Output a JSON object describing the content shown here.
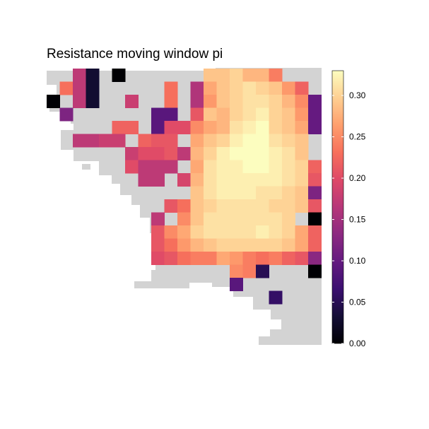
{
  "chart_data": {
    "type": "heatmap",
    "title": "Resistance moving window pi",
    "xlabel": "",
    "ylabel": "",
    "colormap": "magma",
    "na_color": "#d3d3d3",
    "legend": {
      "placement": "right",
      "range": [
        0,
        0.33
      ],
      "ticks": [
        0.0,
        0.05,
        0.1,
        0.15,
        0.2,
        0.25,
        0.3
      ],
      "tick_labels": [
        "0.00",
        "0.05",
        "0.10",
        "0.15",
        "0.20",
        "0.25",
        "0.30"
      ]
    },
    "grid_size": [
      21,
      21
    ],
    "cells": [
      [
        2,
        0,
        0.17
      ],
      [
        3,
        0,
        0.03
      ],
      [
        5,
        0,
        0.0
      ],
      [
        12,
        0,
        0.29
      ],
      [
        13,
        0,
        0.29
      ],
      [
        14,
        0,
        0.3
      ],
      [
        15,
        0,
        0.28
      ],
      [
        16,
        0,
        0.28
      ],
      [
        17,
        0,
        0.24
      ],
      [
        1,
        1,
        0.23
      ],
      [
        2,
        1,
        0.17
      ],
      [
        3,
        1,
        0.03
      ],
      [
        9,
        1,
        0.23
      ],
      [
        11,
        1,
        0.16
      ],
      [
        12,
        1,
        0.27
      ],
      [
        13,
        1,
        0.29
      ],
      [
        14,
        1,
        0.3
      ],
      [
        15,
        1,
        0.31
      ],
      [
        16,
        1,
        0.3
      ],
      [
        17,
        1,
        0.29
      ],
      [
        18,
        1,
        0.26
      ],
      [
        19,
        1,
        0.22
      ],
      [
        0,
        2,
        0.0
      ],
      [
        2,
        2,
        0.17
      ],
      [
        3,
        2,
        0.03
      ],
      [
        6,
        2,
        0.18
      ],
      [
        9,
        2,
        0.23
      ],
      [
        11,
        2,
        0.16
      ],
      [
        12,
        2,
        0.26
      ],
      [
        13,
        2,
        0.29
      ],
      [
        14,
        2,
        0.3
      ],
      [
        15,
        2,
        0.31
      ],
      [
        16,
        2,
        0.31
      ],
      [
        17,
        2,
        0.3
      ],
      [
        18,
        2,
        0.28
      ],
      [
        19,
        2,
        0.25
      ],
      [
        20,
        2,
        0.1
      ],
      [
        1,
        3,
        0.12
      ],
      [
        8,
        3,
        0.09
      ],
      [
        9,
        3,
        0.09
      ],
      [
        11,
        3,
        0.21
      ],
      [
        12,
        3,
        0.29
      ],
      [
        13,
        3,
        0.28
      ],
      [
        14,
        3,
        0.3
      ],
      [
        15,
        3,
        0.31
      ],
      [
        16,
        3,
        0.32
      ],
      [
        17,
        3,
        0.3
      ],
      [
        18,
        3,
        0.29
      ],
      [
        19,
        3,
        0.26
      ],
      [
        20,
        3,
        0.1
      ],
      [
        5,
        4,
        0.22
      ],
      [
        6,
        4,
        0.22
      ],
      [
        8,
        4,
        0.09
      ],
      [
        9,
        4,
        0.2
      ],
      [
        10,
        4,
        0.2
      ],
      [
        11,
        4,
        0.25
      ],
      [
        12,
        4,
        0.27
      ],
      [
        13,
        4,
        0.28
      ],
      [
        14,
        4,
        0.31
      ],
      [
        15,
        4,
        0.32
      ],
      [
        16,
        4,
        0.33
      ],
      [
        17,
        4,
        0.3
      ],
      [
        18,
        4,
        0.29
      ],
      [
        19,
        4,
        0.27
      ],
      [
        20,
        4,
        0.1
      ],
      [
        2,
        5,
        0.17
      ],
      [
        3,
        5,
        0.17
      ],
      [
        4,
        5,
        0.18
      ],
      [
        5,
        5,
        0.18
      ],
      [
        7,
        5,
        0.22
      ],
      [
        8,
        5,
        0.21
      ],
      [
        9,
        5,
        0.21
      ],
      [
        11,
        5,
        0.27
      ],
      [
        12,
        5,
        0.29
      ],
      [
        13,
        5,
        0.3
      ],
      [
        14,
        5,
        0.32
      ],
      [
        15,
        5,
        0.33
      ],
      [
        16,
        5,
        0.33
      ],
      [
        17,
        5,
        0.31
      ],
      [
        18,
        5,
        0.3
      ],
      [
        19,
        5,
        0.29
      ],
      [
        6,
        6,
        0.18
      ],
      [
        7,
        6,
        0.2
      ],
      [
        8,
        6,
        0.2
      ],
      [
        9,
        6,
        0.21
      ],
      [
        10,
        6,
        0.17
      ],
      [
        11,
        6,
        0.28
      ],
      [
        12,
        6,
        0.3
      ],
      [
        13,
        6,
        0.32
      ],
      [
        14,
        6,
        0.33
      ],
      [
        15,
        6,
        0.33
      ],
      [
        16,
        6,
        0.33
      ],
      [
        17,
        6,
        0.32
      ],
      [
        18,
        6,
        0.31
      ],
      [
        19,
        6,
        0.29
      ],
      [
        6,
        7,
        0.2
      ],
      [
        7,
        7,
        0.17
      ],
      [
        8,
        7,
        0.17
      ],
      [
        9,
        7,
        0.17
      ],
      [
        11,
        7,
        0.27
      ],
      [
        12,
        7,
        0.31
      ],
      [
        13,
        7,
        0.32
      ],
      [
        14,
        7,
        0.32
      ],
      [
        15,
        7,
        0.33
      ],
      [
        16,
        7,
        0.33
      ],
      [
        17,
        7,
        0.32
      ],
      [
        18,
        7,
        0.31
      ],
      [
        19,
        7,
        0.3
      ],
      [
        20,
        7,
        0.22
      ],
      [
        7,
        8,
        0.17
      ],
      [
        8,
        8,
        0.17
      ],
      [
        10,
        8,
        0.19
      ],
      [
        11,
        8,
        0.28
      ],
      [
        12,
        8,
        0.31
      ],
      [
        13,
        8,
        0.32
      ],
      [
        14,
        8,
        0.32
      ],
      [
        15,
        8,
        0.32
      ],
      [
        16,
        8,
        0.32
      ],
      [
        17,
        8,
        0.32
      ],
      [
        18,
        8,
        0.31
      ],
      [
        19,
        8,
        0.3
      ],
      [
        20,
        8,
        0.21
      ],
      [
        11,
        9,
        0.29
      ],
      [
        12,
        9,
        0.31
      ],
      [
        13,
        9,
        0.32
      ],
      [
        14,
        9,
        0.32
      ],
      [
        15,
        9,
        0.32
      ],
      [
        16,
        9,
        0.31
      ],
      [
        17,
        9,
        0.31
      ],
      [
        18,
        9,
        0.3
      ],
      [
        19,
        9,
        0.29
      ],
      [
        20,
        9,
        0.12
      ],
      [
        9,
        10,
        0.21
      ],
      [
        10,
        10,
        0.23
      ],
      [
        11,
        10,
        0.29
      ],
      [
        12,
        10,
        0.3
      ],
      [
        13,
        10,
        0.31
      ],
      [
        14,
        10,
        0.31
      ],
      [
        15,
        10,
        0.31
      ],
      [
        16,
        10,
        0.31
      ],
      [
        17,
        10,
        0.3
      ],
      [
        18,
        10,
        0.3
      ],
      [
        19,
        10,
        0.29
      ],
      [
        20,
        10,
        0.21
      ],
      [
        8,
        11,
        0.17
      ],
      [
        10,
        11,
        0.25
      ],
      [
        11,
        11,
        0.29
      ],
      [
        12,
        11,
        0.31
      ],
      [
        13,
        11,
        0.31
      ],
      [
        14,
        11,
        0.31
      ],
      [
        15,
        11,
        0.31
      ],
      [
        16,
        11,
        0.31
      ],
      [
        17,
        11,
        0.31
      ],
      [
        18,
        11,
        0.3
      ],
      [
        20,
        11,
        0.0
      ],
      [
        8,
        12,
        0.21
      ],
      [
        9,
        12,
        0.25
      ],
      [
        10,
        12,
        0.27
      ],
      [
        11,
        12,
        0.3
      ],
      [
        12,
        12,
        0.31
      ],
      [
        13,
        12,
        0.31
      ],
      [
        14,
        12,
        0.31
      ],
      [
        15,
        12,
        0.31
      ],
      [
        16,
        12,
        0.32
      ],
      [
        17,
        12,
        0.31
      ],
      [
        18,
        12,
        0.3
      ],
      [
        19,
        12,
        0.27
      ],
      [
        20,
        12,
        0.22
      ],
      [
        8,
        13,
        0.21
      ],
      [
        9,
        13,
        0.23
      ],
      [
        10,
        13,
        0.26
      ],
      [
        11,
        13,
        0.28
      ],
      [
        12,
        13,
        0.29
      ],
      [
        13,
        13,
        0.3
      ],
      [
        14,
        13,
        0.3
      ],
      [
        15,
        13,
        0.3
      ],
      [
        16,
        13,
        0.3
      ],
      [
        17,
        13,
        0.3
      ],
      [
        18,
        13,
        0.29
      ],
      [
        19,
        13,
        0.27
      ],
      [
        20,
        13,
        0.22
      ],
      [
        8,
        14,
        0.2
      ],
      [
        9,
        14,
        0.21
      ],
      [
        10,
        14,
        0.23
      ],
      [
        11,
        14,
        0.24
      ],
      [
        12,
        14,
        0.24
      ],
      [
        13,
        14,
        0.27
      ],
      [
        14,
        14,
        0.26
      ],
      [
        15,
        14,
        0.24
      ],
      [
        16,
        14,
        0.23
      ],
      [
        17,
        14,
        0.24
      ],
      [
        18,
        14,
        0.22
      ],
      [
        19,
        14,
        0.21
      ],
      [
        20,
        14,
        0.13
      ],
      [
        14,
        15,
        0.25
      ],
      [
        15,
        15,
        0.24
      ],
      [
        16,
        15,
        0.05
      ],
      [
        20,
        15,
        0.0
      ],
      [
        14,
        16,
        0.09
      ],
      [
        17,
        17,
        0.06
      ]
    ]
  }
}
